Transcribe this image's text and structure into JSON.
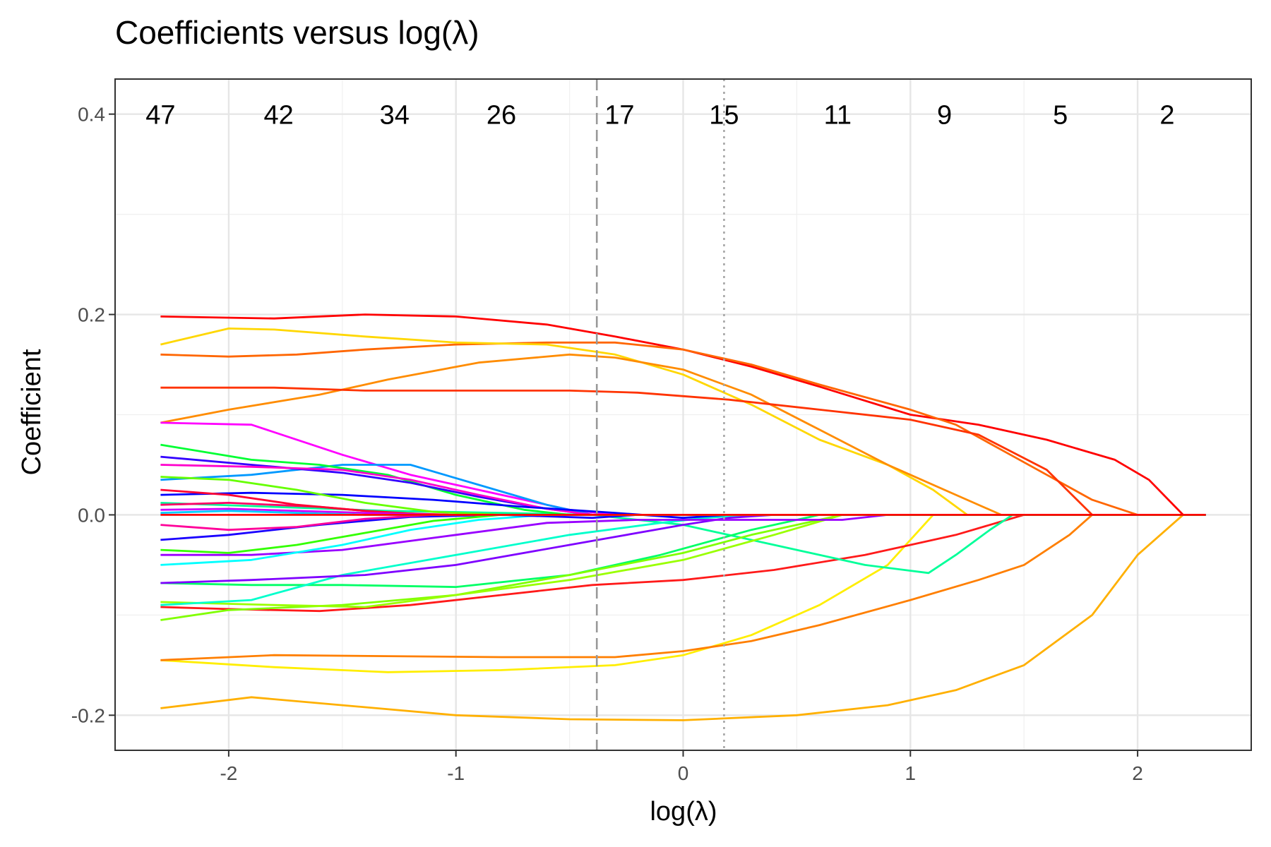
{
  "chart_data": {
    "type": "line",
    "title": "Coefficients versus log(λ)",
    "xlabel": "log(λ)",
    "ylabel": "Coefficient",
    "xlim": [
      -2.5,
      2.5
    ],
    "ylim": [
      -0.235,
      0.435
    ],
    "x_ticks": [
      -2,
      -1,
      0,
      1,
      2
    ],
    "x_tick_labels": [
      "-2",
      "-1",
      "0",
      "1",
      "2"
    ],
    "y_ticks": [
      -0.2,
      0.0,
      0.2,
      0.4
    ],
    "y_tick_labels": [
      "-0.2",
      "0.0",
      "0.2",
      "0.4"
    ],
    "grid": true,
    "legend": "none",
    "top_labels": [
      {
        "x": -2.3,
        "text": "47"
      },
      {
        "x": -1.78,
        "text": "42"
      },
      {
        "x": -1.27,
        "text": "34"
      },
      {
        "x": -0.8,
        "text": "26"
      },
      {
        "x": -0.28,
        "text": "17"
      },
      {
        "x": 0.18,
        "text": "15"
      },
      {
        "x": 0.68,
        "text": "11"
      },
      {
        "x": 1.15,
        "text": "9"
      },
      {
        "x": 1.66,
        "text": "5"
      },
      {
        "x": 2.13,
        "text": "2"
      }
    ],
    "vlines": [
      {
        "x": -0.38,
        "style": "dashed",
        "color": "#999999"
      },
      {
        "x": 0.18,
        "style": "dotted",
        "color": "#a6a6a6"
      }
    ],
    "series": [
      {
        "color": "#ff0000",
        "x": [
          -2.3,
          -1.8,
          -1.4,
          -1.0,
          -0.6,
          -0.3,
          0.0,
          0.3,
          0.6,
          1.0,
          1.3,
          1.6,
          1.9,
          2.05,
          2.2,
          2.3
        ],
        "y": [
          0.198,
          0.196,
          0.2,
          0.198,
          0.19,
          0.178,
          0.165,
          0.148,
          0.128,
          0.1,
          0.09,
          0.075,
          0.055,
          0.035,
          0.0,
          0.0
        ]
      },
      {
        "color": "#ff6600",
        "x": [
          -2.3,
          -2.0,
          -1.7,
          -1.4,
          -1.0,
          -0.6,
          -0.3,
          0.0,
          0.3,
          0.6,
          1.0,
          1.2,
          1.4,
          1.6,
          1.8,
          2.0,
          2.3
        ],
        "y": [
          0.16,
          0.158,
          0.16,
          0.165,
          0.17,
          0.172,
          0.172,
          0.165,
          0.15,
          0.13,
          0.105,
          0.09,
          0.065,
          0.04,
          0.015,
          0.0,
          0.0
        ]
      },
      {
        "color": "#ffd700",
        "x": [
          -2.3,
          -2.0,
          -1.8,
          -1.4,
          -1.0,
          -0.6,
          -0.3,
          0.0,
          0.3,
          0.6,
          0.9,
          1.1,
          1.25,
          2.3
        ],
        "y": [
          0.17,
          0.186,
          0.185,
          0.178,
          0.172,
          0.17,
          0.16,
          0.14,
          0.11,
          0.075,
          0.05,
          0.025,
          0.0,
          0.0
        ]
      },
      {
        "color": "#ff8c00",
        "x": [
          -2.3,
          -2.0,
          -1.6,
          -1.3,
          -0.9,
          -0.5,
          -0.3,
          0.0,
          0.3,
          0.6,
          0.9,
          1.2,
          1.4,
          2.3
        ],
        "y": [
          0.092,
          0.105,
          0.12,
          0.135,
          0.152,
          0.16,
          0.157,
          0.145,
          0.12,
          0.085,
          0.05,
          0.02,
          0.0,
          0.0
        ]
      },
      {
        "color": "#ff3300",
        "x": [
          -2.3,
          -1.8,
          -1.4,
          -1.0,
          -0.5,
          -0.2,
          0.2,
          0.6,
          1.0,
          1.3,
          1.6,
          1.8,
          2.3
        ],
        "y": [
          0.127,
          0.127,
          0.124,
          0.124,
          0.124,
          0.122,
          0.115,
          0.105,
          0.095,
          0.08,
          0.045,
          0.0,
          0.0
        ]
      },
      {
        "color": "#ffb000",
        "x": [
          -2.3,
          -1.9,
          -1.5,
          -1.0,
          -0.5,
          0.0,
          0.5,
          0.9,
          1.2,
          1.5,
          1.8,
          2.0,
          2.2,
          2.3
        ],
        "y": [
          -0.193,
          -0.182,
          -0.19,
          -0.2,
          -0.204,
          -0.205,
          -0.2,
          -0.19,
          -0.175,
          -0.15,
          -0.1,
          -0.04,
          0.0,
          0.0
        ]
      },
      {
        "color": "#ffee00",
        "x": [
          -2.3,
          -1.8,
          -1.3,
          -0.8,
          -0.3,
          0.0,
          0.3,
          0.6,
          0.9,
          1.1,
          1.4,
          2.3
        ],
        "y": [
          -0.145,
          -0.152,
          -0.157,
          -0.155,
          -0.15,
          -0.14,
          -0.12,
          -0.09,
          -0.05,
          0.0,
          0.0,
          0.0
        ]
      },
      {
        "color": "#ff7f00",
        "x": [
          -2.3,
          -1.8,
          -1.3,
          -0.8,
          -0.3,
          0.0,
          0.3,
          0.6,
          1.0,
          1.3,
          1.5,
          1.7,
          1.8,
          2.3
        ],
        "y": [
          -0.145,
          -0.14,
          -0.141,
          -0.142,
          -0.142,
          -0.136,
          -0.126,
          -0.11,
          -0.085,
          -0.065,
          -0.05,
          -0.02,
          0.0,
          0.0
        ]
      },
      {
        "color": "#ff1a1a",
        "x": [
          -2.3,
          -2.0,
          -1.6,
          -1.2,
          -0.8,
          -0.4,
          0.0,
          0.4,
          0.8,
          1.2,
          1.5,
          2.3
        ],
        "y": [
          -0.092,
          -0.094,
          -0.096,
          -0.09,
          -0.08,
          -0.07,
          -0.065,
          -0.055,
          -0.04,
          -0.02,
          0.0,
          0.0
        ]
      },
      {
        "color": "#00ff99",
        "x": [
          -2.3,
          -1.8,
          -1.3,
          -0.8,
          -0.4,
          0.0,
          0.4,
          0.8,
          1.08,
          1.2,
          1.35,
          1.45,
          2.3
        ],
        "y": [
          0.012,
          0.008,
          0.004,
          0.002,
          0.0,
          -0.01,
          -0.03,
          -0.05,
          -0.058,
          -0.04,
          -0.015,
          0.0,
          0.0
        ]
      },
      {
        "color": "#00ff66",
        "x": [
          -2.3,
          -1.9,
          -1.5,
          -1.0,
          -0.5,
          -0.1,
          0.3,
          0.6,
          0.8,
          2.3
        ],
        "y": [
          -0.068,
          -0.07,
          -0.07,
          -0.072,
          -0.06,
          -0.04,
          -0.015,
          0.0,
          0.0,
          0.0
        ]
      },
      {
        "color": "#80ff00",
        "x": [
          -2.3,
          -2.0,
          -1.5,
          -1.0,
          -0.5,
          0.0,
          0.3,
          0.6,
          0.7,
          2.3
        ],
        "y": [
          -0.105,
          -0.095,
          -0.09,
          -0.08,
          -0.06,
          -0.038,
          -0.02,
          -0.005,
          0.0,
          0.0
        ]
      },
      {
        "color": "#9aff00",
        "x": [
          -2.3,
          -1.8,
          -1.4,
          -1.0,
          -0.5,
          0.0,
          0.4,
          0.7,
          2.3
        ],
        "y": [
          -0.087,
          -0.09,
          -0.092,
          -0.08,
          -0.065,
          -0.045,
          -0.02,
          0.0,
          0.0
        ]
      },
      {
        "color": "#00ffcc",
        "x": [
          -2.3,
          -1.9,
          -1.5,
          -1.0,
          -0.5,
          -0.1,
          0.1,
          0.3,
          2.3
        ],
        "y": [
          -0.09,
          -0.085,
          -0.06,
          -0.04,
          -0.02,
          -0.008,
          -0.003,
          0.0,
          0.0
        ]
      },
      {
        "color": "#7f00ff",
        "x": [
          -2.3,
          -1.9,
          -1.4,
          -1.0,
          -0.5,
          0.0,
          0.2,
          0.4,
          2.3
        ],
        "y": [
          -0.068,
          -0.065,
          -0.06,
          -0.05,
          -0.03,
          -0.01,
          -0.003,
          0.0,
          0.0
        ]
      },
      {
        "color": "#9900ff",
        "x": [
          -2.3,
          -1.9,
          -1.5,
          -1.0,
          -0.6,
          -0.2,
          0.3,
          0.7,
          0.9,
          2.3
        ],
        "y": [
          -0.04,
          -0.04,
          -0.035,
          -0.02,
          -0.008,
          -0.005,
          -0.005,
          -0.005,
          0.0,
          0.0
        ]
      },
      {
        "color": "#00ffff",
        "x": [
          -2.3,
          -1.9,
          -1.5,
          -1.2,
          -0.9,
          -0.6,
          -0.3,
          2.3
        ],
        "y": [
          -0.05,
          -0.045,
          -0.03,
          -0.015,
          -0.005,
          0.0,
          0.0,
          0.0
        ]
      },
      {
        "color": "#ff00ff",
        "x": [
          -2.3,
          -1.9,
          -1.5,
          -1.2,
          -0.8,
          -0.5,
          -0.3,
          2.3
        ],
        "y": [
          0.092,
          0.09,
          0.06,
          0.04,
          0.02,
          0.005,
          0.0,
          0.0
        ]
      },
      {
        "color": "#0099ff",
        "x": [
          -2.3,
          -1.9,
          -1.5,
          -1.2,
          -0.9,
          -0.6,
          -0.4,
          2.3
        ],
        "y": [
          0.035,
          0.04,
          0.05,
          0.05,
          0.03,
          0.01,
          0.0,
          0.0
        ]
      },
      {
        "color": "#00ff33",
        "x": [
          -2.3,
          -1.9,
          -1.6,
          -1.3,
          -1.0,
          -0.7,
          -0.5,
          2.3
        ],
        "y": [
          0.07,
          0.055,
          0.05,
          0.04,
          0.02,
          0.005,
          0.0,
          0.0
        ]
      },
      {
        "color": "#3300ff",
        "x": [
          -2.3,
          -1.9,
          -1.5,
          -1.2,
          -0.9,
          -0.6,
          -0.4,
          2.3
        ],
        "y": [
          0.058,
          0.05,
          0.042,
          0.032,
          0.018,
          0.006,
          0.0,
          0.0
        ]
      },
      {
        "color": "#ff00cc",
        "x": [
          -2.3,
          -1.9,
          -1.5,
          -1.2,
          -0.9,
          -0.6,
          -0.4,
          2.3
        ],
        "y": [
          0.05,
          0.048,
          0.045,
          0.035,
          0.02,
          0.006,
          0.0,
          0.0
        ]
      },
      {
        "color": "#0000ff",
        "x": [
          -2.3,
          -1.9,
          -1.5,
          -1.1,
          -0.7,
          -0.3,
          0.0,
          0.2,
          2.3
        ],
        "y": [
          0.02,
          0.022,
          0.02,
          0.015,
          0.008,
          0.002,
          -0.003,
          0.0,
          0.0
        ]
      },
      {
        "color": "#1a00ff",
        "x": [
          -2.3,
          -2.0,
          -1.6,
          -1.2,
          -0.8,
          -0.4,
          -0.2,
          2.3
        ],
        "y": [
          -0.025,
          -0.02,
          -0.01,
          -0.002,
          0.0,
          -0.003,
          0.0,
          0.0
        ]
      },
      {
        "color": "#ff0066",
        "x": [
          -2.3,
          -2.0,
          -1.6,
          -1.3,
          -1.0,
          -0.7,
          -0.5,
          2.3
        ],
        "y": [
          0.01,
          0.012,
          0.008,
          0.002,
          0.0,
          0.0,
          0.0,
          0.0
        ]
      },
      {
        "color": "#ff0033",
        "x": [
          -2.3,
          -2.0,
          -1.7,
          -1.4,
          -1.1,
          -0.8,
          2.3
        ],
        "y": [
          0.025,
          0.02,
          0.01,
          0.004,
          0.0,
          0.0,
          0.0
        ]
      },
      {
        "color": "#ff0099",
        "x": [
          -2.3,
          -2.0,
          -1.7,
          -1.4,
          -1.1,
          -0.8,
          2.3
        ],
        "y": [
          -0.01,
          -0.015,
          -0.012,
          -0.004,
          0.0,
          0.0,
          0.0
        ]
      },
      {
        "color": "#cc00ff",
        "x": [
          -2.3,
          -2.0,
          -1.7,
          -1.4,
          -1.1,
          -0.8,
          2.3
        ],
        "y": [
          0.005,
          0.006,
          0.004,
          0.002,
          0.0,
          0.0,
          0.0
        ]
      },
      {
        "color": "#33ff00",
        "x": [
          -2.3,
          -2.0,
          -1.7,
          -1.4,
          -1.1,
          -0.8,
          -0.6,
          2.3
        ],
        "y": [
          -0.035,
          -0.038,
          -0.03,
          -0.018,
          -0.006,
          0.0,
          0.0,
          0.0
        ]
      },
      {
        "color": "#00ccff",
        "x": [
          -2.3,
          -2.0,
          -1.7,
          -1.4,
          -1.1,
          -0.8,
          2.3
        ],
        "y": [
          0.002,
          0.004,
          0.002,
          0.0,
          0.0,
          0.0,
          0.0
        ]
      },
      {
        "color": "#66ff00",
        "x": [
          -2.3,
          -2.0,
          -1.7,
          -1.4,
          -1.1,
          -0.8,
          2.3
        ],
        "y": [
          0.038,
          0.035,
          0.025,
          0.012,
          0.003,
          0.0,
          0.0
        ]
      },
      {
        "color": "#ff0000",
        "x": [
          -2.3,
          2.3
        ],
        "y": [
          0.0,
          0.0
        ]
      }
    ]
  }
}
